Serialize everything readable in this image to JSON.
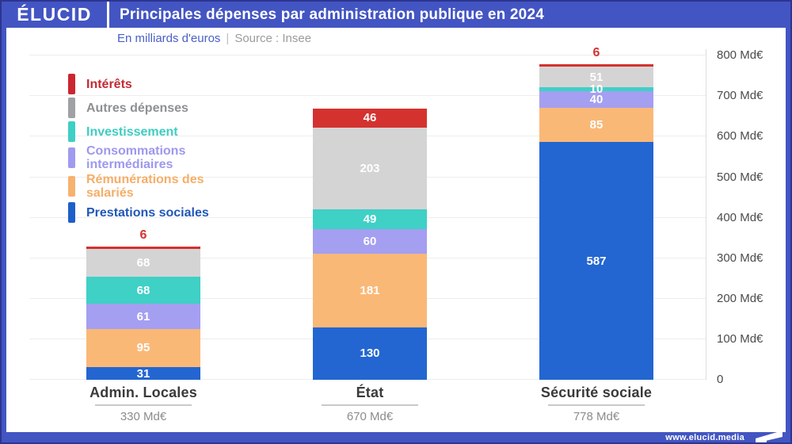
{
  "header": {
    "logo": "ÉLUCID",
    "title": "Principales dépenses par administration publique en 2024"
  },
  "subtitle": {
    "unit": "En milliards d'euros",
    "separator": "|",
    "source": "Source : Insee"
  },
  "legend": [
    {
      "label": "Intérêts",
      "color": "#cc2630",
      "text_color": "#c32b33"
    },
    {
      "label": "Autres dépenses",
      "color": "#9fa1a4",
      "text_color": "#8e9093"
    },
    {
      "label": "Investissement",
      "color": "#3ecfc5",
      "text_color": "#3ecdc3"
    },
    {
      "label": "Consommations intermédiaires",
      "color": "#a09bef",
      "text_color": "#9d98ee"
    },
    {
      "label": "Rémunérations des salariés",
      "color": "#f7b26f",
      "text_color": "#f5ae67"
    },
    {
      "label": "Prestations sociales",
      "color": "#1e5fc9",
      "text_color": "#2157b8"
    }
  ],
  "chart_data": {
    "type": "stacked-bar",
    "title": "Principales dépenses par administration publique en 2024",
    "unit": "Md€",
    "categories": [
      "Admin. Locales",
      "État",
      "Sécurité sociale"
    ],
    "category_totals": [
      "330 Md€",
      "670 Md€",
      "778 Md€"
    ],
    "series": [
      {
        "name": "Prestations sociales",
        "color": "#2366d1",
        "values": [
          31,
          130,
          587
        ]
      },
      {
        "name": "Rémunérations des salariés",
        "color": "#fab877",
        "values": [
          95,
          181,
          85
        ]
      },
      {
        "name": "Consommations intermédiaires",
        "color": "#a49ff1",
        "values": [
          61,
          60,
          40
        ]
      },
      {
        "name": "Investissement",
        "color": "#3fd0c6",
        "values": [
          68,
          49,
          10
        ]
      },
      {
        "name": "Autres dépenses",
        "color": "#d4d4d5",
        "values": [
          68,
          203,
          51
        ]
      },
      {
        "name": "Intérêts",
        "color": "#d4322f",
        "values": [
          6,
          46,
          6
        ]
      }
    ],
    "ylim": [
      0,
      800
    ],
    "y_ticks": [
      {
        "value": 800,
        "label": "800 Md€"
      },
      {
        "value": 700,
        "label": "700 Md€"
      },
      {
        "value": 600,
        "label": "600 Md€"
      },
      {
        "value": 500,
        "label": "500 Md€"
      },
      {
        "value": 400,
        "label": "400 Md€"
      },
      {
        "value": 300,
        "label": "300 Md€"
      },
      {
        "value": 200,
        "label": "200 Md€"
      },
      {
        "value": 100,
        "label": "100 Md€"
      },
      {
        "value": 0,
        "label": "0"
      }
    ],
    "grid": true,
    "legend_position": "upper-left"
  },
  "footer": {
    "url": "www.elucid.media"
  }
}
